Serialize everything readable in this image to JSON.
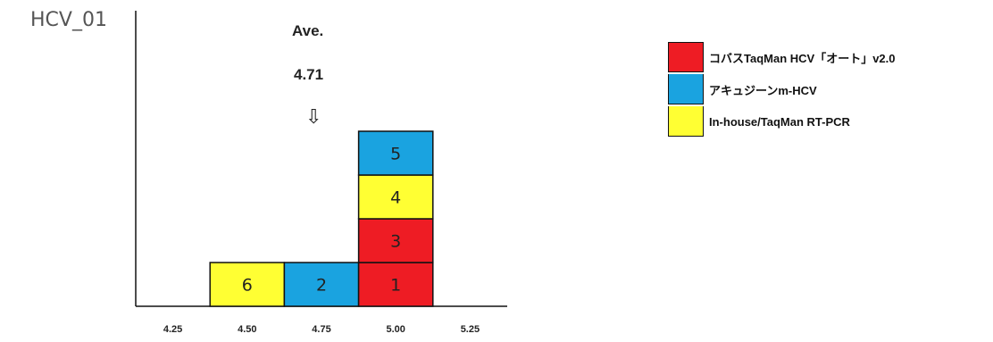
{
  "title": "HCV_01",
  "annotation": {
    "label": "Ave.",
    "value": "4.71",
    "arrow": "⇩"
  },
  "colors": {
    "method_1": "#ee1c24",
    "method_2": "#1aa3e0",
    "method_3": "#ffff33",
    "border": "#111111",
    "axis": "#111111"
  },
  "chart_data": {
    "type": "bar",
    "title": "",
    "xlabel": "",
    "ylabel": "",
    "x_ticks": [
      "4.25",
      "4.50",
      "4.75",
      "5.00",
      "5.25"
    ],
    "bin_width": 0.25,
    "xlim": [
      4.125,
      5.375
    ],
    "ylim": [
      0,
      6
    ],
    "grid": false,
    "legend_position": "right",
    "average": 4.71,
    "series": [
      {
        "name": "コバスTaqMan HCV「オート」v2.0",
        "color_key": "method_1"
      },
      {
        "name": "アキュジーンm-HCV",
        "color_key": "method_2"
      },
      {
        "name": "In-house/TaqMan RT-PCR",
        "color_key": "method_3"
      }
    ],
    "blocks": [
      {
        "x": 4.5,
        "level": 1,
        "label": "6",
        "series": 2
      },
      {
        "x": 4.75,
        "level": 1,
        "label": "2",
        "series": 1
      },
      {
        "x": 5.0,
        "level": 1,
        "label": "1",
        "series": 0
      },
      {
        "x": 5.0,
        "level": 2,
        "label": "3",
        "series": 0
      },
      {
        "x": 5.0,
        "level": 3,
        "label": "4",
        "series": 2
      },
      {
        "x": 5.0,
        "level": 4,
        "label": "5",
        "series": 1
      }
    ]
  }
}
